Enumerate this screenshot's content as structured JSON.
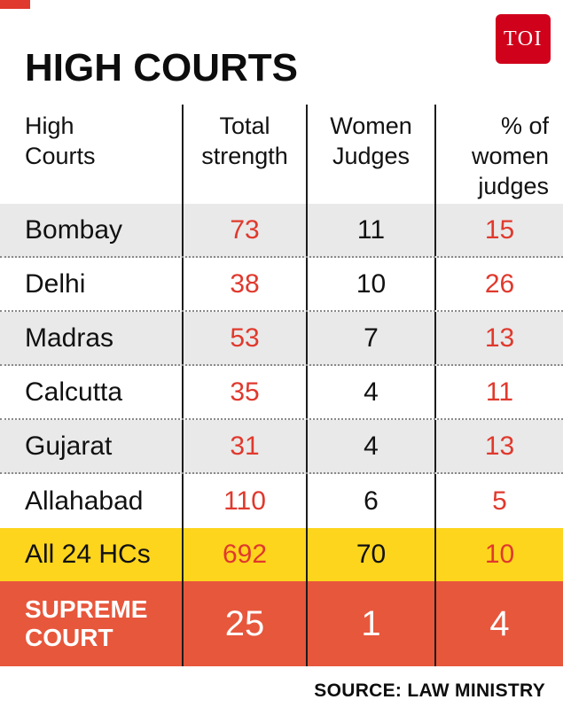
{
  "logo": {
    "text": "TOI"
  },
  "title": "HIGH COURTS",
  "source": "SOURCE: LAW MINISTRY",
  "colors": {
    "red": "#e0392d",
    "logoRed": "#d0021b",
    "yellow": "#fdd51d",
    "supreme": "#e7573c",
    "grayRow": "#e9e9e9"
  },
  "table": {
    "headers": [
      "High\nCourts",
      "Total\nstrength",
      "Women\nJudges",
      "% of\nwomen\njudges"
    ],
    "rows": [
      {
        "name": "Bombay",
        "total": "73",
        "women": "11",
        "pct": "15"
      },
      {
        "name": "Delhi",
        "total": "38",
        "women": "10",
        "pct": "26"
      },
      {
        "name": "Madras",
        "total": "53",
        "women": "7",
        "pct": "13"
      },
      {
        "name": "Calcutta",
        "total": "35",
        "women": "4",
        "pct": "11"
      },
      {
        "name": "Gujarat",
        "total": "31",
        "women": "4",
        "pct": "13"
      },
      {
        "name": "Allahabad",
        "total": "110",
        "women": "6",
        "pct": "5"
      },
      {
        "name": "All 24 HCs",
        "total": "692",
        "women": "70",
        "pct": "10"
      },
      {
        "name": "SUPREME\nCOURT",
        "total": "25",
        "women": "1",
        "pct": "4"
      }
    ]
  },
  "chart_data": {
    "type": "table",
    "title": "HIGH COURTS",
    "columns": [
      "High Courts",
      "Total strength",
      "Women Judges",
      "% of women judges"
    ],
    "rows": [
      [
        "Bombay",
        73,
        11,
        15
      ],
      [
        "Delhi",
        38,
        10,
        26
      ],
      [
        "Madras",
        53,
        7,
        13
      ],
      [
        "Calcutta",
        35,
        4,
        11
      ],
      [
        "Gujarat",
        31,
        4,
        13
      ],
      [
        "Allahabad",
        110,
        6,
        5
      ],
      [
        "All 24 HCs",
        692,
        70,
        10
      ],
      [
        "SUPREME COURT",
        25,
        1,
        4
      ]
    ],
    "source": "LAW MINISTRY"
  }
}
